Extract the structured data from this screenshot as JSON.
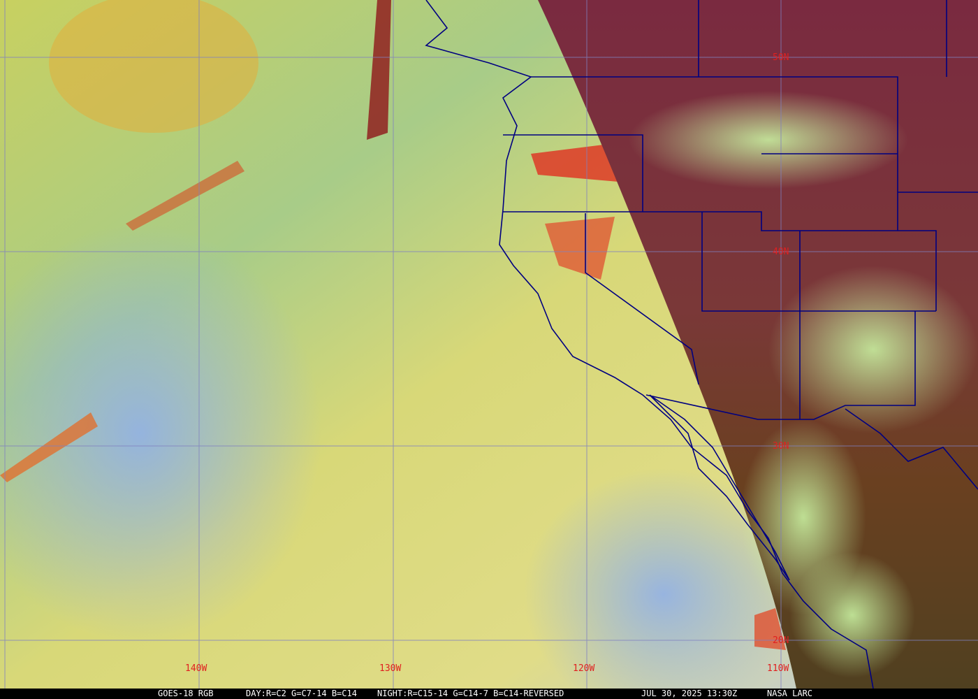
{
  "caption": {
    "satellite": "GOES-18 RGB",
    "day_recipe": "DAY:R=C2 G=C7-14 B=C14",
    "night_recipe": "NIGHT:R=C15-14 G=C14-7 B=C14-REVERSED",
    "datetime": "JUL 30, 2025 13:30Z",
    "credit": "NASA LARC"
  },
  "grid": {
    "longitude_labels": [
      "140W",
      "130W",
      "120W",
      "110W"
    ],
    "latitude_labels": [
      "50N",
      "40N",
      "30N",
      "20N"
    ]
  },
  "colors": {
    "grid": "#8080c0",
    "borders": "#000080",
    "labels": "#e02020",
    "ocean_day": "#d8d870",
    "ocean_blue": "#90b0e0",
    "night_land": "#803040"
  }
}
